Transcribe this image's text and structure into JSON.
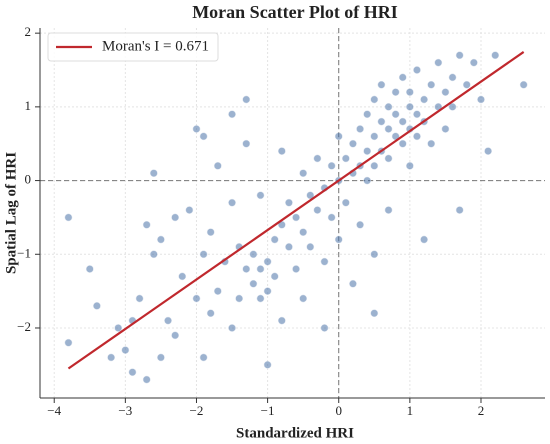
{
  "chart_data": {
    "type": "scatter",
    "title": "Moran Scatter Plot of HRI",
    "x_label": "Standardized HRI",
    "y_label": "Spatial Lag of HRI",
    "xlim": [
      -4.2,
      2.9
    ],
    "ylim": [
      -2.95,
      2.07
    ],
    "xticks": [
      {
        "value": -4,
        "label": "−4"
      },
      {
        "value": -3,
        "label": "−3"
      },
      {
        "value": -2,
        "label": "−2"
      },
      {
        "value": -1,
        "label": "−1"
      },
      0,
      1,
      2
    ],
    "yticks": [
      {
        "value": -2,
        "label": "−2"
      },
      {
        "value": -1,
        "label": "−1"
      },
      0,
      1,
      2
    ],
    "grid": true,
    "legend": "upper left",
    "hline": 0,
    "vline": 0,
    "points": {
      "color": "#4a72a8",
      "x": [
        -3.8,
        -3.8,
        -3.5,
        -3.4,
        -3.1,
        -3.0,
        -2.9,
        -2.8,
        -2.7,
        -2.7,
        -2.6,
        -2.6,
        -2.5,
        -2.5,
        -2.4,
        -2.3,
        -2.3,
        -2.2,
        -2.1,
        -2.0,
        -2.0,
        -1.9,
        -1.9,
        -1.8,
        -1.8,
        -1.7,
        -1.7,
        -1.6,
        -1.5,
        -1.5,
        -1.4,
        -1.4,
        -1.3,
        -1.3,
        -1.2,
        -1.2,
        -1.1,
        -1.1,
        -1.1,
        -1.0,
        -1.0,
        -1.0,
        -0.9,
        -0.9,
        -0.8,
        -0.8,
        -0.8,
        -0.7,
        -0.7,
        -0.6,
        -0.6,
        -0.5,
        -0.5,
        -0.5,
        -0.4,
        -0.4,
        -0.3,
        -0.3,
        -0.2,
        -0.2,
        -0.1,
        -0.1,
        0.0,
        0.0,
        0.0,
        0.1,
        0.1,
        0.2,
        0.2,
        0.2,
        0.3,
        0.3,
        0.3,
        0.4,
        0.4,
        0.4,
        0.5,
        0.5,
        0.5,
        0.5,
        0.6,
        0.6,
        0.6,
        0.7,
        0.7,
        0.7,
        0.7,
        0.8,
        0.8,
        0.8,
        0.9,
        0.9,
        0.9,
        1.0,
        1.0,
        1.0,
        1.0,
        1.1,
        1.1,
        1.1,
        1.2,
        1.2,
        1.3,
        1.3,
        1.4,
        1.4,
        1.5,
        1.5,
        1.6,
        1.6,
        1.7,
        1.8,
        1.9,
        2.0,
        2.1,
        2.2,
        2.6,
        1.7,
        1.2,
        -2.9,
        -3.2,
        -0.2,
        0.5,
        -1.9,
        -1.5,
        -1.3
      ],
      "y": [
        -0.5,
        -2.2,
        -1.2,
        -1.7,
        -2.0,
        -2.3,
        -2.6,
        -1.6,
        -2.7,
        -0.6,
        0.1,
        -1.0,
        -2.4,
        -0.8,
        -1.9,
        -0.5,
        -2.1,
        -1.3,
        -0.4,
        -1.6,
        0.7,
        -2.4,
        -1.0,
        -0.7,
        -1.8,
        0.2,
        -1.5,
        -1.1,
        -0.3,
        -2.0,
        -1.6,
        -0.9,
        -1.2,
        0.5,
        -1.4,
        -1.0,
        -1.6,
        -1.2,
        -0.2,
        -1.5,
        -1.1,
        -2.5,
        -0.8,
        -1.3,
        -0.6,
        -1.9,
        0.4,
        -0.9,
        -0.3,
        -1.2,
        -0.5,
        0.1,
        -0.7,
        -1.6,
        -0.2,
        -0.9,
        0.3,
        -0.4,
        -0.1,
        -1.1,
        0.2,
        -0.5,
        0.0,
        0.6,
        -0.8,
        0.3,
        -0.3,
        0.5,
        0.1,
        -1.4,
        0.7,
        0.2,
        -0.6,
        0.9,
        0.4,
        0.0,
        0.6,
        1.1,
        0.2,
        -1.0,
        0.8,
        0.4,
        1.3,
        0.7,
        1.0,
        0.3,
        -0.4,
        0.9,
        0.6,
        1.2,
        0.8,
        0.5,
        1.4,
        1.0,
        0.7,
        1.2,
        0.2,
        0.9,
        1.5,
        0.6,
        1.1,
        0.8,
        1.3,
        0.5,
        1.0,
        1.6,
        1.2,
        0.7,
        1.4,
        1.0,
        1.7,
        1.3,
        1.6,
        1.1,
        0.4,
        1.7,
        1.3,
        -0.4,
        -0.8,
        -1.9,
        -2.4,
        -2.0,
        -1.8,
        0.6,
        0.9,
        1.1
      ]
    },
    "fit_line": {
      "name": "Moran's I = 0.671",
      "color": "#c0282d",
      "x": [
        -3.8,
        2.6
      ],
      "y": [
        -2.55,
        1.745
      ]
    }
  }
}
